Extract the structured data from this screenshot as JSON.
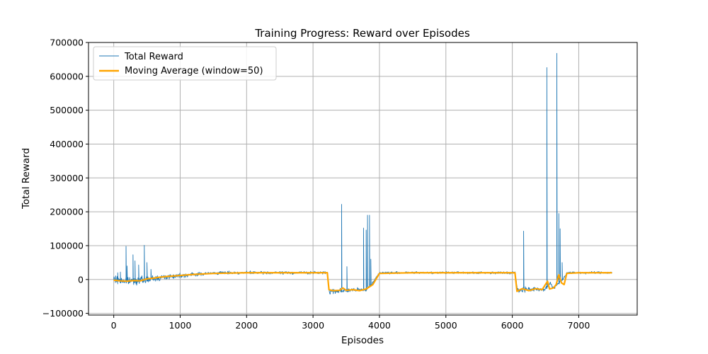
{
  "chart_data": {
    "type": "line",
    "title": "Training Progress: Reward over Episodes",
    "xlabel": "Episodes",
    "ylabel": "Total Reward",
    "xlim": [
      -380,
      7880
    ],
    "ylim": [
      -105000,
      700000
    ],
    "xticks": [
      0,
      1000,
      2000,
      3000,
      4000,
      5000,
      6000,
      7000
    ],
    "yticks": [
      -100000,
      0,
      100000,
      200000,
      300000,
      400000,
      500000,
      600000,
      700000
    ],
    "grid": true,
    "legend_position": "top-left",
    "colors": {
      "raw": "#1f77b4",
      "moving_average": "#ffa500",
      "grid": "#b0b0b0"
    },
    "series": [
      {
        "name": "Total Reward",
        "kind": "raw",
        "baseline": [
          [
            0,
            0
          ],
          [
            200,
            -5000
          ],
          [
            500,
            0
          ],
          [
            800,
            8000
          ],
          [
            1000,
            12000
          ],
          [
            1200,
            15000
          ],
          [
            1600,
            20000
          ],
          [
            2000,
            20000
          ],
          [
            2500,
            20000
          ],
          [
            3000,
            20000
          ],
          [
            3215,
            20000
          ],
          [
            3245,
            -35000
          ],
          [
            3500,
            -32000
          ],
          [
            3800,
            -30000
          ],
          [
            3900,
            -10000
          ],
          [
            4000,
            20000
          ],
          [
            4500,
            20000
          ],
          [
            5000,
            20000
          ],
          [
            5500,
            20000
          ],
          [
            6040,
            20000
          ],
          [
            6080,
            -33000
          ],
          [
            6200,
            -28000
          ],
          [
            6500,
            -30000
          ],
          [
            6570,
            -10000
          ],
          [
            6620,
            -25000
          ],
          [
            6700,
            -10000
          ],
          [
            6760,
            0
          ],
          [
            6820,
            20000
          ],
          [
            7000,
            20000
          ],
          [
            7500,
            20000
          ]
        ],
        "noise": [
          [
            0,
            18000
          ],
          [
            1000,
            10000
          ],
          [
            1500,
            6000
          ],
          [
            3215,
            6000
          ],
          [
            3245,
            12000
          ],
          [
            4000,
            5000
          ],
          [
            6040,
            5000
          ],
          [
            6080,
            12000
          ],
          [
            6820,
            5000
          ],
          [
            7500,
            5000
          ]
        ],
        "spikes": [
          [
            60,
            20000
          ],
          [
            100,
            22000
          ],
          [
            185,
            98000
          ],
          [
            200,
            40000
          ],
          [
            290,
            73000
          ],
          [
            320,
            55000
          ],
          [
            375,
            43000
          ],
          [
            460,
            101000
          ],
          [
            500,
            50000
          ],
          [
            560,
            30000
          ],
          [
            3430,
            222000
          ],
          [
            3510,
            38000
          ],
          [
            3760,
            152000
          ],
          [
            3800,
            146000
          ],
          [
            3820,
            190000
          ],
          [
            3850,
            190000
          ],
          [
            3870,
            60000
          ],
          [
            6170,
            143000
          ],
          [
            6520,
            626000
          ],
          [
            6670,
            668000
          ],
          [
            6700,
            195000
          ],
          [
            6720,
            150000
          ],
          [
            6750,
            50000
          ]
        ]
      },
      {
        "name": "Moving Average (window=50)",
        "kind": "moving_average",
        "values": [
          [
            0,
            -2000
          ],
          [
            100,
            -4000
          ],
          [
            200,
            -5000
          ],
          [
            300,
            -3000
          ],
          [
            400,
            -4000
          ],
          [
            500,
            2000
          ],
          [
            600,
            4000
          ],
          [
            700,
            7000
          ],
          [
            800,
            9000
          ],
          [
            1000,
            12000
          ],
          [
            1200,
            15000
          ],
          [
            1500,
            18000
          ],
          [
            2000,
            20000
          ],
          [
            2500,
            20000
          ],
          [
            3000,
            20000
          ],
          [
            3215,
            20000
          ],
          [
            3240,
            -30000
          ],
          [
            3300,
            -33000
          ],
          [
            3400,
            -32000
          ],
          [
            3450,
            -25000
          ],
          [
            3500,
            -32000
          ],
          [
            3600,
            -30000
          ],
          [
            3700,
            -33000
          ],
          [
            3800,
            -28000
          ],
          [
            3900,
            -15000
          ],
          [
            3960,
            5000
          ],
          [
            4000,
            18000
          ],
          [
            4500,
            20000
          ],
          [
            5000,
            20000
          ],
          [
            5500,
            20000
          ],
          [
            6040,
            20000
          ],
          [
            6070,
            -35000
          ],
          [
            6150,
            -27000
          ],
          [
            6250,
            -33000
          ],
          [
            6350,
            -27000
          ],
          [
            6450,
            -30000
          ],
          [
            6530,
            -5000
          ],
          [
            6560,
            -28000
          ],
          [
            6620,
            -25000
          ],
          [
            6660,
            -15000
          ],
          [
            6700,
            14000
          ],
          [
            6740,
            -10000
          ],
          [
            6780,
            -15000
          ],
          [
            6820,
            18000
          ],
          [
            7000,
            20000
          ],
          [
            7500,
            20000
          ]
        ]
      }
    ]
  }
}
